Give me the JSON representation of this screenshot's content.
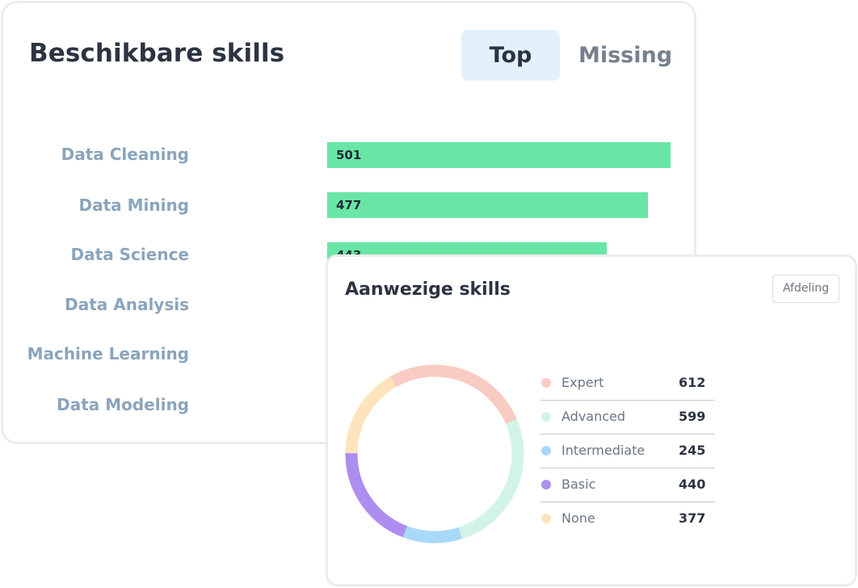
{
  "available_skills": {
    "title": "Beschikbare skills",
    "tabs": [
      {
        "label": "Top",
        "active": true
      },
      {
        "label": "Missing",
        "active": false
      }
    ],
    "bar_color": "#69e6a5",
    "skills": [
      {
        "label": "Data Cleaning",
        "value": "501"
      },
      {
        "label": "Data Mining",
        "value": "477"
      },
      {
        "label": "Data Science",
        "value": "443"
      },
      {
        "label": "Data Analysis",
        "value": ""
      },
      {
        "label": "Machine Learning",
        "value": ""
      },
      {
        "label": "Data Modeling",
        "value": ""
      }
    ]
  },
  "present_skills": {
    "title": "Aanwezige skills",
    "filter_button": "Afdeling",
    "legend": [
      {
        "label": "Expert",
        "value": "612",
        "color": "#f8cbc3"
      },
      {
        "label": "Advanced",
        "value": "599",
        "color": "#d1f4e6"
      },
      {
        "label": "Intermediate",
        "value": "245",
        "color": "#a8d9f8"
      },
      {
        "label": "Basic",
        "value": "440",
        "color": "#ad8ef0"
      },
      {
        "label": "None",
        "value": "377",
        "color": "#fde4bd"
      }
    ]
  },
  "chart_data": {
    "type": "pie",
    "categories": [
      "Expert",
      "Advanced",
      "Intermediate",
      "Basic",
      "None"
    ],
    "values": [
      612,
      599,
      245,
      440,
      377
    ],
    "colors": [
      "#f8cbc3",
      "#d1f4e6",
      "#a8d9f8",
      "#ad8ef0",
      "#fde4bd"
    ],
    "title": ""
  }
}
